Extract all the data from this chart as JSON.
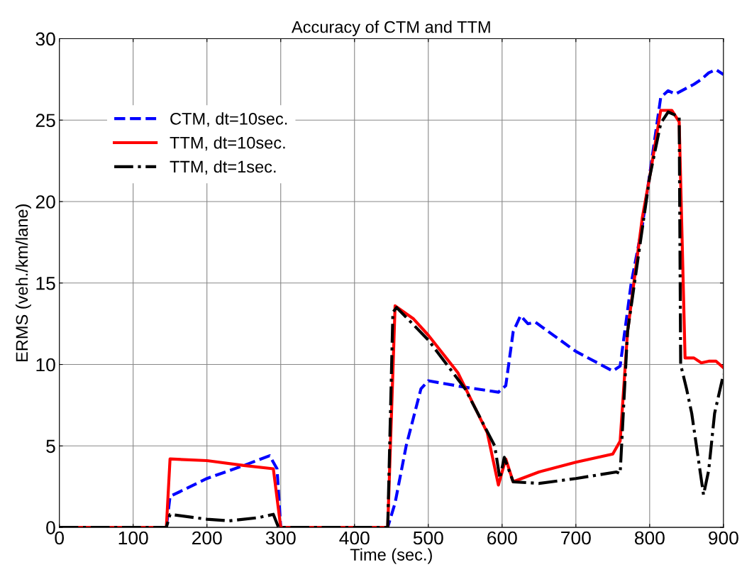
{
  "chart_data": {
    "type": "line",
    "title": "Accuracy of CTM and TTM",
    "xlabel": "Time (sec.)",
    "ylabel": "ERMS (veh./km/lane)",
    "xlim": [
      0,
      900
    ],
    "ylim": [
      0,
      30
    ],
    "xticks": [
      0,
      100,
      200,
      300,
      400,
      500,
      600,
      700,
      800,
      900
    ],
    "yticks": [
      0,
      5,
      10,
      15,
      20,
      25,
      30
    ],
    "grid": true,
    "legend": "top left",
    "series": [
      {
        "name": "CTM, dt=10sec.",
        "color": "#0000ff",
        "line_style": "dashed",
        "x": [
          0,
          145,
          150,
          200,
          250,
          285,
          295,
          300,
          445,
          455,
          470,
          490,
          500,
          550,
          595,
          605,
          615,
          625,
          635,
          645,
          700,
          750,
          760,
          775,
          790,
          815,
          825,
          835,
          860,
          870,
          880,
          890,
          900
        ],
        "values": [
          0,
          0,
          1.9,
          3.0,
          3.8,
          4.4,
          3.6,
          0,
          0,
          1.5,
          5,
          8.5,
          9.0,
          8.6,
          8.3,
          8.7,
          12,
          13.0,
          12.5,
          12.6,
          10.8,
          9.6,
          9.9,
          15,
          18.5,
          26.4,
          26.8,
          26.6,
          27.2,
          27.5,
          27.9,
          28.1,
          27.8
        ]
      },
      {
        "name": "TTM, dt=10sec.",
        "color": "#ff0000",
        "line_style": "solid",
        "x": [
          0,
          145,
          150,
          200,
          250,
          290,
          300,
          445,
          455,
          480,
          500,
          540,
          580,
          595,
          605,
          615,
          650,
          700,
          750,
          760,
          770,
          790,
          800,
          815,
          830,
          840,
          848,
          860,
          870,
          880,
          890,
          900
        ],
        "values": [
          0,
          0,
          4.2,
          4.1,
          3.8,
          3.6,
          0,
          0,
          13.6,
          12.8,
          11.8,
          9.5,
          5.8,
          2.6,
          4.2,
          2.8,
          3.4,
          4.0,
          4.5,
          5.3,
          12,
          19,
          21.5,
          25.6,
          25.6,
          24.9,
          10.4,
          10.4,
          10.1,
          10.2,
          10.2,
          9.8
        ]
      },
      {
        "name": "TTM, dt=1sec.",
        "color": "#000000",
        "line_style": "dashdot",
        "x": [
          0,
          145,
          150,
          200,
          230,
          270,
          290,
          297,
          445,
          452,
          457,
          500,
          550,
          590,
          597,
          603,
          615,
          650,
          700,
          755,
          760,
          770,
          800,
          815,
          825,
          840,
          842,
          850,
          857,
          865,
          873,
          880,
          888,
          900
        ],
        "values": [
          0,
          0,
          0.8,
          0.5,
          0.4,
          0.6,
          0.8,
          0,
          0,
          13.2,
          13.5,
          11.5,
          8.5,
          5.0,
          3.0,
          4.3,
          2.8,
          2.7,
          3.0,
          3.4,
          3.3,
          12,
          21.5,
          24.8,
          25.5,
          25.2,
          10,
          8.5,
          7,
          4.5,
          2.0,
          3.5,
          7,
          9.4
        ]
      }
    ]
  }
}
